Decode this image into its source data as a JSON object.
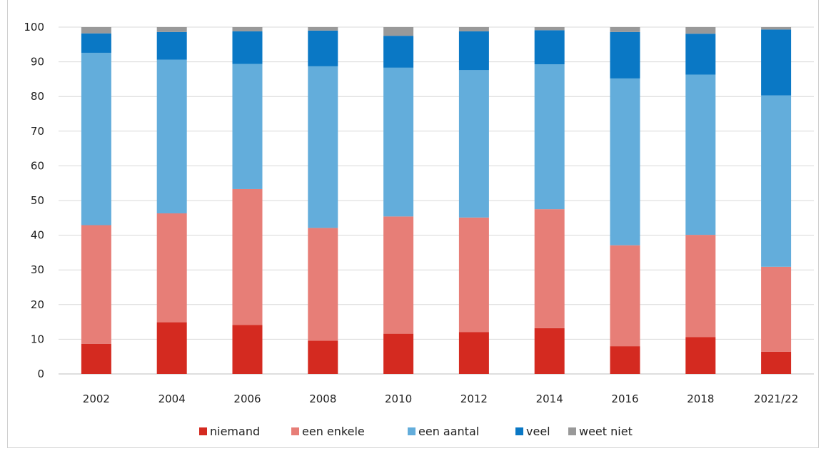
{
  "chart_data": {
    "type": "bar",
    "stacked": true,
    "categories": [
      "2002",
      "2004",
      "2006",
      "2008",
      "2010",
      "2012",
      "2014",
      "2016",
      "2018",
      "2021/22"
    ],
    "series": [
      {
        "name": "niemand",
        "color": "#d42a20",
        "values": [
          8.7,
          14.9,
          14.1,
          9.6,
          11.6,
          12.1,
          13.2,
          8.0,
          10.6,
          6.4
        ]
      },
      {
        "name": "een enkele",
        "color": "#e77e77",
        "values": [
          34.2,
          31.4,
          39.2,
          32.5,
          33.8,
          33.0,
          34.3,
          29.1,
          29.5,
          24.5
        ]
      },
      {
        "name": "een aantal",
        "color": "#63addb",
        "values": [
          49.7,
          44.3,
          36.1,
          46.6,
          42.9,
          42.5,
          41.8,
          48.1,
          46.2,
          49.4
        ]
      },
      {
        "name": "veel",
        "color": "#0a78c5",
        "values": [
          5.6,
          8.0,
          9.4,
          10.3,
          9.2,
          11.2,
          9.8,
          13.4,
          11.8,
          19.0
        ]
      },
      {
        "name": "weet niet",
        "color": "#999999",
        "values": [
          1.8,
          1.4,
          1.2,
          1.0,
          2.5,
          1.2,
          0.9,
          1.4,
          1.9,
          0.7
        ]
      }
    ],
    "y_ticks": [
      "0",
      "10",
      "20",
      "30",
      "40",
      "50",
      "60",
      "70",
      "80",
      "90",
      "100"
    ],
    "ylim": [
      0,
      100
    ],
    "grid": true,
    "legend_position": "bottom"
  }
}
